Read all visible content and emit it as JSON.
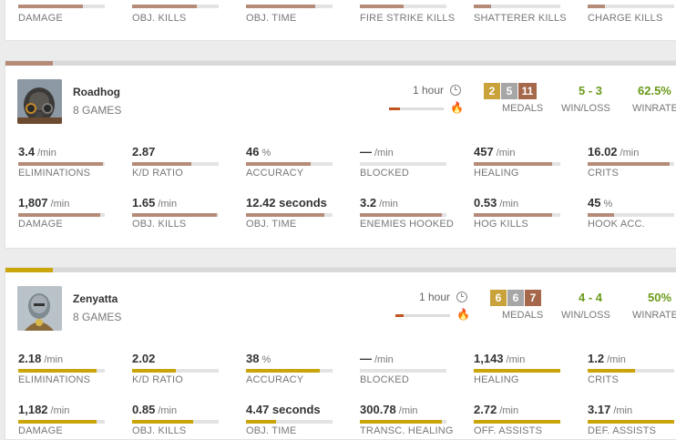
{
  "colors": {
    "roadhog": "#b58a77",
    "zenyatta": "#c9a50a",
    "gold": "#c9a23b",
    "silver": "#a6a6a6",
    "bronze": "#a5684a",
    "win": "#6a9a1a"
  },
  "partial": {
    "stats": [
      {
        "label": "DAMAGE",
        "fill": 0.75
      },
      {
        "label": "OBJ. KILLS",
        "fill": 0.75
      },
      {
        "label": "OBJ. TIME",
        "fill": 0.8
      },
      {
        "label": "FIRE STRIKE KILLS",
        "fill": 0.5
      },
      {
        "label": "SHATTERER KILLS",
        "fill": 0.2
      },
      {
        "label": "CHARGE KILLS",
        "fill": 0.2
      }
    ]
  },
  "heroes": [
    {
      "name": "Roadhog",
      "games": "8 GAMES",
      "time": "1 hour",
      "time_fill": 0.2,
      "medals": {
        "gold": "2",
        "silver": "5",
        "bronze": "11",
        "label": "MEDALS"
      },
      "winloss": "5 - 3",
      "winloss_label": "WIN/LOSS",
      "winrate": "62.5%",
      "winrate_label": "WINRATE",
      "icons": {
        "clock": "clock-icon",
        "flame": "flame-icon"
      },
      "stats": [
        {
          "value": "3.4",
          "unit": "/min",
          "label": "ELIMINATIONS",
          "fill": 0.98
        },
        {
          "value": "2.87",
          "unit": "",
          "label": "K/D RATIO",
          "fill": 0.68
        },
        {
          "value": "46",
          "unit": "%",
          "label": "ACCURACY",
          "fill": 0.75
        },
        {
          "value": "—",
          "unit": "/min",
          "label": "BLOCKED",
          "fill": 0
        },
        {
          "value": "457",
          "unit": "/min",
          "label": "HEALING",
          "fill": 0.9
        },
        {
          "value": "16.02",
          "unit": "/min",
          "label": "CRITS",
          "fill": 0.95
        },
        {
          "value": "1,807",
          "unit": "/min",
          "label": "DAMAGE",
          "fill": 0.95
        },
        {
          "value": "1.65",
          "unit": "/min",
          "label": "OBJ. KILLS",
          "fill": 0.98
        },
        {
          "value": "12.42 seconds",
          "unit": "",
          "label": "OBJ. TIME",
          "fill": 0.9
        },
        {
          "value": "3.2",
          "unit": "/min",
          "label": "ENEMIES HOOKED",
          "fill": 0.95
        },
        {
          "value": "0.53",
          "unit": "/min",
          "label": "HOG KILLS",
          "fill": 0.9
        },
        {
          "value": "45",
          "unit": "%",
          "label": "HOOK ACC.",
          "fill": 0.3
        }
      ]
    },
    {
      "name": "Zenyatta",
      "games": "8 GAMES",
      "time": "1 hour",
      "time_fill": 0.15,
      "medals": {
        "gold": "6",
        "silver": "6",
        "bronze": "7",
        "label": "MEDALS"
      },
      "winloss": "4 - 4",
      "winloss_label": "WIN/LOSS",
      "winrate": "50%",
      "winrate_label": "WINRATE",
      "icons": {
        "clock": "clock-icon",
        "flame": "flame-icon"
      },
      "stats": [
        {
          "value": "2.18",
          "unit": "/min",
          "label": "ELIMINATIONS",
          "fill": 0.9
        },
        {
          "value": "2.02",
          "unit": "",
          "label": "K/D RATIO",
          "fill": 0.5
        },
        {
          "value": "38",
          "unit": "%",
          "label": "ACCURACY",
          "fill": 0.85
        },
        {
          "value": "—",
          "unit": "/min",
          "label": "BLOCKED",
          "fill": 0
        },
        {
          "value": "1,143",
          "unit": "/min",
          "label": "HEALING",
          "fill": 1.0
        },
        {
          "value": "1.2",
          "unit": "/min",
          "label": "CRITS",
          "fill": 0.55
        },
        {
          "value": "1,182",
          "unit": "/min",
          "label": "DAMAGE",
          "fill": 0.9
        },
        {
          "value": "0.85",
          "unit": "/min",
          "label": "OBJ. KILLS",
          "fill": 0.7
        },
        {
          "value": "4.47 seconds",
          "unit": "",
          "label": "OBJ. TIME",
          "fill": 0.35
        },
        {
          "value": "300.78",
          "unit": "/min",
          "label": "TRANSC. HEALING",
          "fill": 0.95
        },
        {
          "value": "2.72",
          "unit": "/min",
          "label": "OFF. ASSISTS",
          "fill": 1.0
        },
        {
          "value": "3.17",
          "unit": "/min",
          "label": "DEF. ASSISTS",
          "fill": 1.0
        }
      ]
    }
  ]
}
